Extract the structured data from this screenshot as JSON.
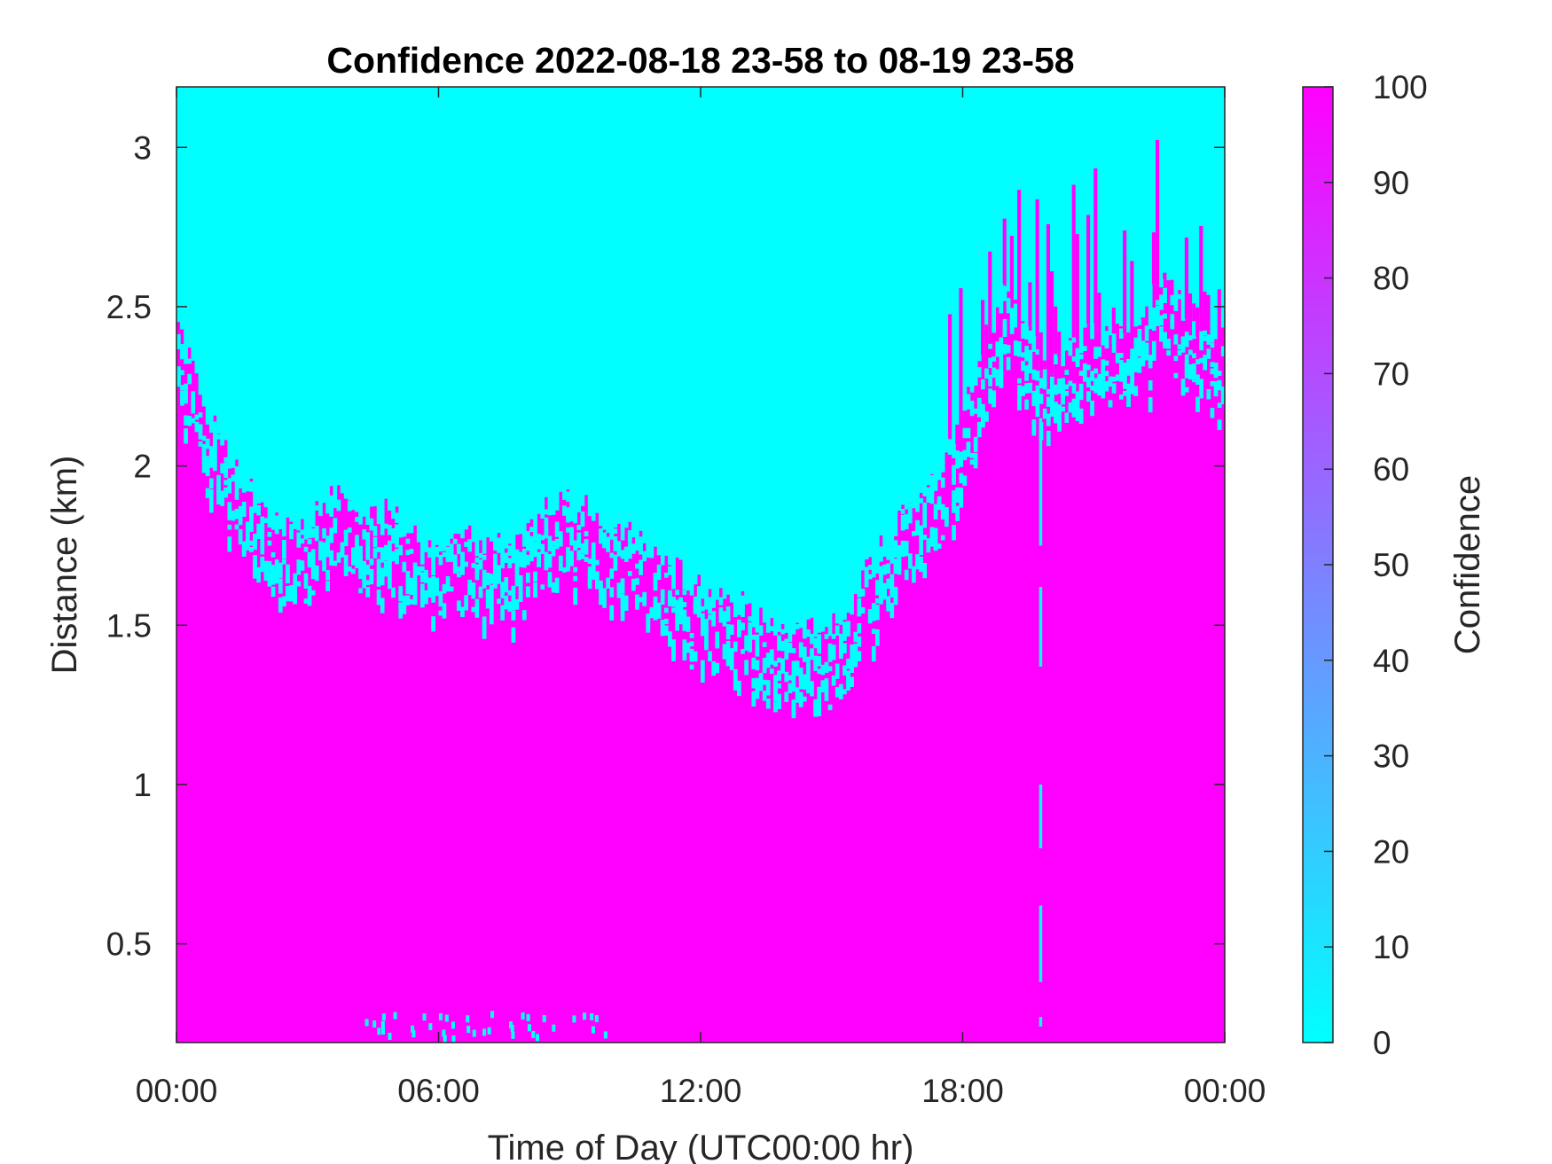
{
  "chart_data": {
    "type": "heatmap",
    "title": "Confidence 2022-08-18 23-58 to 08-19 23-58",
    "xlabel": "Time of Day (UTC00:00 hr)",
    "ylabel": "Distance (km)",
    "colorbar_label": "Confidence",
    "x_ticks": [
      "00:00",
      "06:00",
      "12:00",
      "18:00",
      "00:00"
    ],
    "x_range_hours": [
      0,
      24
    ],
    "y_ticks": [
      "0.5",
      "1",
      "1.5",
      "2",
      "2.5",
      "3"
    ],
    "y_tick_values": [
      0.5,
      1,
      1.5,
      2,
      2.5,
      3
    ],
    "ylim": [
      0.19,
      3.19
    ],
    "colorbar_ticks": [
      "0",
      "10",
      "20",
      "30",
      "40",
      "50",
      "60",
      "70",
      "80",
      "90",
      "100"
    ],
    "clim": [
      0,
      100
    ],
    "colormap": {
      "low": "#00ffff",
      "high": "#ff00ff"
    },
    "grid": false,
    "z_description_values": {
      "high_confidence": 100,
      "low_confidence": 0
    },
    "boundary": {
      "time_hours": [
        0,
        0.5,
        1,
        1.5,
        2,
        2.5,
        3,
        3.5,
        4,
        4.5,
        5,
        5.5,
        6,
        6.5,
        7,
        7.5,
        8,
        8.5,
        9,
        9.5,
        10,
        10.5,
        11,
        11.5,
        12,
        12.5,
        13,
        13.5,
        14,
        14.5,
        15,
        15.5,
        16,
        16.5,
        17,
        17.5,
        18,
        18.5,
        19,
        19.5,
        20,
        20.5,
        21,
        21.5,
        22,
        22.5,
        23,
        23.5,
        24
      ],
      "distance_km": [
        2.45,
        2.25,
        2.1,
        1.95,
        1.85,
        1.8,
        1.82,
        1.9,
        1.88,
        1.85,
        1.83,
        1.75,
        1.7,
        1.75,
        1.78,
        1.72,
        1.8,
        1.85,
        1.88,
        1.87,
        1.82,
        1.75,
        1.7,
        1.65,
        1.6,
        1.56,
        1.55,
        1.52,
        1.5,
        1.48,
        1.52,
        1.6,
        1.7,
        1.8,
        1.88,
        1.98,
        2.15,
        2.4,
        2.55,
        2.4,
        2.3,
        2.35,
        2.4,
        2.45,
        2.4,
        2.55,
        2.5,
        2.45,
        2.4
      ]
    },
    "vertical_streak_hour": 19.75,
    "near_ground_low_confidence_hours": [
      4.3,
      9.8
    ]
  }
}
